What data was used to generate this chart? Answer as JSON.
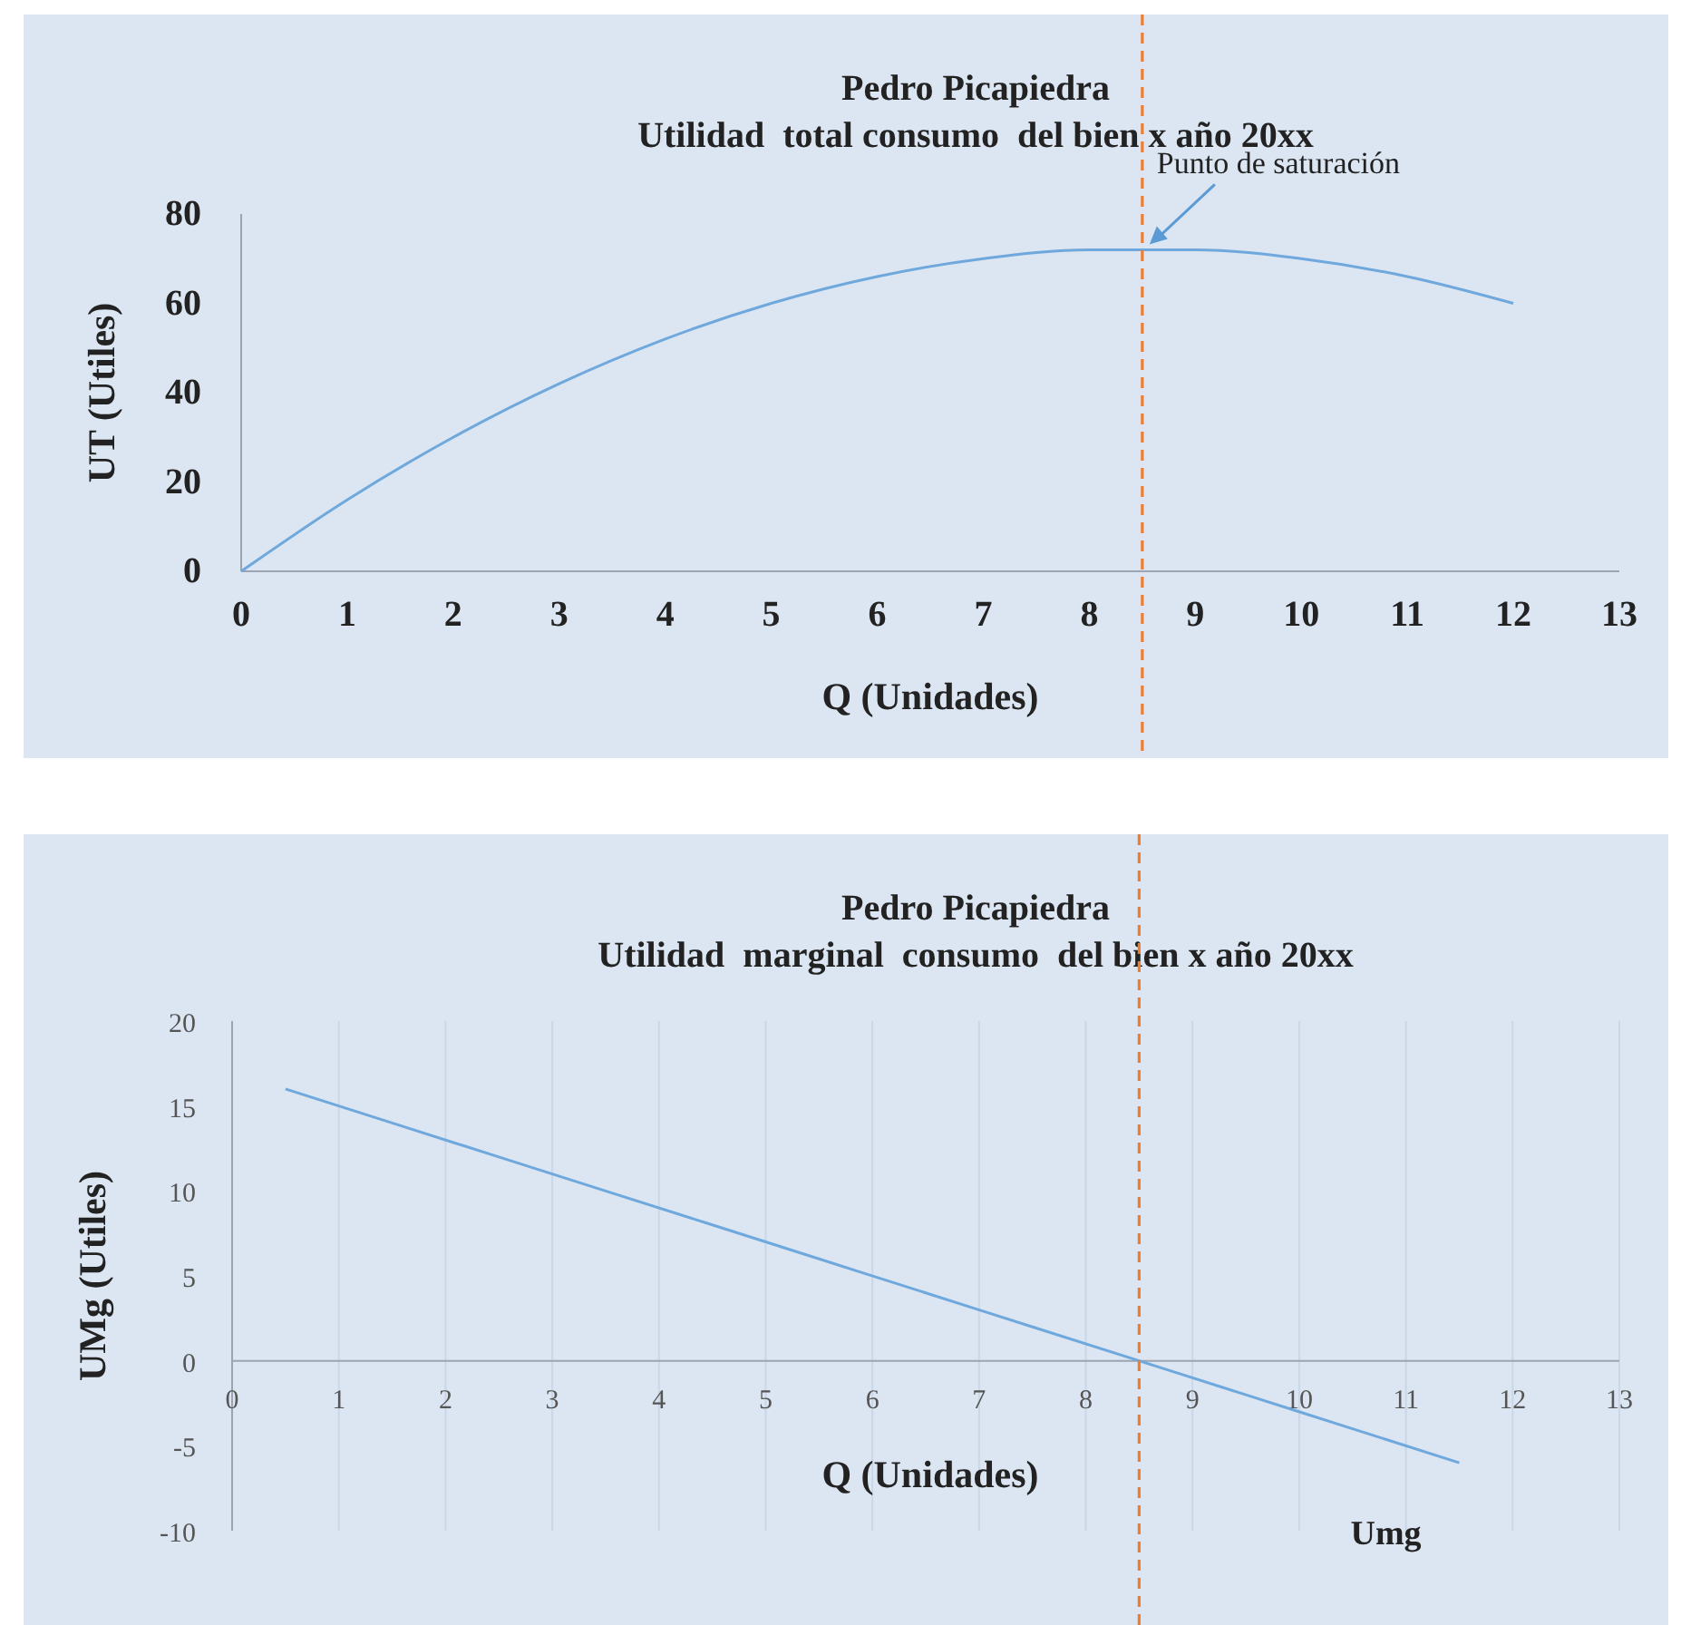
{
  "chart_data": [
    {
      "type": "line",
      "title": "Pedro Picapiedra",
      "subtitle": "Utilidad  total consumo  del bien x año 20xx",
      "xlabel": "Q (Unidades)",
      "ylabel": "UT (Utiles)",
      "x": [
        0,
        1,
        2,
        3,
        4,
        5,
        6,
        7,
        8,
        9,
        10,
        11,
        12
      ],
      "series": [
        {
          "color": "#6fa8dc",
          "values": [
            0,
            16,
            30,
            42,
            52,
            60,
            66,
            70,
            72,
            72,
            70,
            66,
            60
          ]
        }
      ],
      "xlim": [
        0,
        13
      ],
      "xticks": [
        0,
        1,
        2,
        3,
        4,
        5,
        6,
        7,
        8,
        9,
        10,
        11,
        12,
        13
      ],
      "ylim": [
        0,
        80
      ],
      "yticks": [
        0,
        20,
        40,
        60,
        80
      ],
      "grid": false,
      "marker": "none",
      "line_style": "solid",
      "ref_lines": [
        {
          "axis": "x",
          "value": 8.5,
          "color": "#ed7d31",
          "line_style": "dashed"
        }
      ],
      "annotations": [
        {
          "text": "Punto de saturación",
          "x": 8.5,
          "y": 72
        }
      ]
    },
    {
      "type": "line",
      "title": "Pedro Picapiedra",
      "subtitle": "Utilidad  marginal  consumo  del bien x año 20xx",
      "xlabel": "Q (Unidades)",
      "ylabel": "UMg (Utiles)",
      "x": [
        0.5,
        1.5,
        2.5,
        3.5,
        4.5,
        5.5,
        6.5,
        7.5,
        8.5,
        9.5,
        10.5,
        11.5
      ],
      "series": [
        {
          "color": "#6fa8dc",
          "values": [
            16,
            14,
            12,
            10,
            8,
            6,
            4,
            2,
            0,
            -2,
            -4,
            -6
          ]
        }
      ],
      "xlim": [
        0,
        13
      ],
      "xticks": [
        0,
        1,
        2,
        3,
        4,
        5,
        6,
        7,
        8,
        9,
        10,
        11,
        12,
        13
      ],
      "ylim": [
        -10,
        20
      ],
      "yticks": [
        -10,
        -5,
        0,
        5,
        10,
        15,
        20
      ],
      "grid": "x",
      "marker": "none",
      "line_style": "solid",
      "ref_lines": [
        {
          "axis": "x",
          "value": 8.5,
          "color": "#ed7d31",
          "line_style": "dashed"
        }
      ],
      "annotations": [
        {
          "text": "Umg",
          "x": 11.5,
          "y": -6
        }
      ]
    }
  ]
}
